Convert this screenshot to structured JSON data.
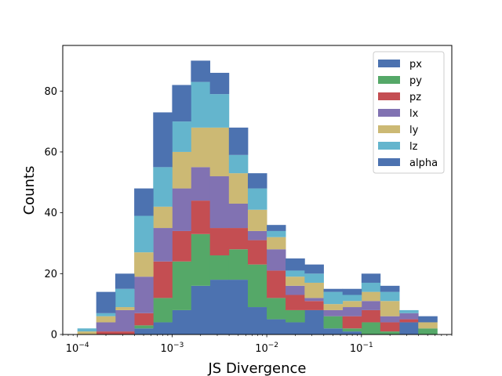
{
  "chart_data": {
    "type": "histogram-stacked",
    "title": "",
    "xlabel": "JS Divergence",
    "ylabel": "Counts",
    "xscale": "log",
    "xlim": [
      7e-05,
      0.9
    ],
    "ylim": [
      0,
      95
    ],
    "x_ticks": [
      {
        "value": 0.0001,
        "label_base": "10",
        "label_exp": "−4"
      },
      {
        "value": 0.001,
        "label_base": "10",
        "label_exp": "−3"
      },
      {
        "value": 0.01,
        "label_base": "10",
        "label_exp": "−2"
      },
      {
        "value": 0.1,
        "label_base": "10",
        "label_exp": "−1"
      }
    ],
    "y_ticks": [
      0,
      20,
      40,
      60,
      80
    ],
    "legend_position": "top-right",
    "bin_edges": [
      0.0001,
      0.000158,
      0.000251,
      0.000398,
      0.000631,
      0.001,
      0.00158,
      0.00251,
      0.00398,
      0.00631,
      0.01,
      0.0158,
      0.0251,
      0.0398,
      0.0631,
      0.1,
      0.158,
      0.251,
      0.398,
      0.631
    ],
    "series": [
      {
        "name": "px",
        "color": "#4c72b0",
        "values": [
          0,
          0,
          0,
          2,
          4,
          8,
          16,
          18,
          18,
          9,
          5,
          4,
          8,
          2,
          1,
          0,
          0,
          4,
          0
        ]
      },
      {
        "name": "py",
        "color": "#55a868",
        "values": [
          0,
          0,
          0,
          1,
          8,
          16,
          17,
          8,
          10,
          14,
          7,
          4,
          0,
          4,
          1,
          4,
          1,
          0,
          2
        ]
      },
      {
        "name": "pz",
        "color": "#c44e52",
        "values": [
          0,
          1,
          1,
          4,
          12,
          10,
          11,
          9,
          7,
          8,
          9,
          5,
          3,
          0,
          4,
          4,
          3,
          1,
          0
        ]
      },
      {
        "name": "lx",
        "color": "#8172b2",
        "values": [
          0,
          3,
          7,
          12,
          11,
          14,
          11,
          17,
          8,
          3,
          7,
          3,
          1,
          2,
          3,
          3,
          2,
          2,
          0
        ]
      },
      {
        "name": "ly",
        "color": "#ccb974",
        "values": [
          1,
          2,
          1,
          8,
          7,
          12,
          13,
          16,
          10,
          7,
          4,
          3,
          5,
          2,
          2,
          3,
          5,
          0,
          2
        ]
      },
      {
        "name": "lz",
        "color": "#64b5cd",
        "values": [
          1,
          1,
          6,
          12,
          13,
          10,
          15,
          11,
          6,
          7,
          2,
          2,
          3,
          4,
          2,
          3,
          3,
          1,
          0
        ]
      },
      {
        "name": "alpha",
        "color": "#4c72b0",
        "values": [
          0,
          7,
          5,
          9,
          18,
          12,
          7,
          7,
          9,
          5,
          2,
          4,
          3,
          1,
          2,
          3,
          2,
          0,
          2
        ]
      }
    ]
  }
}
